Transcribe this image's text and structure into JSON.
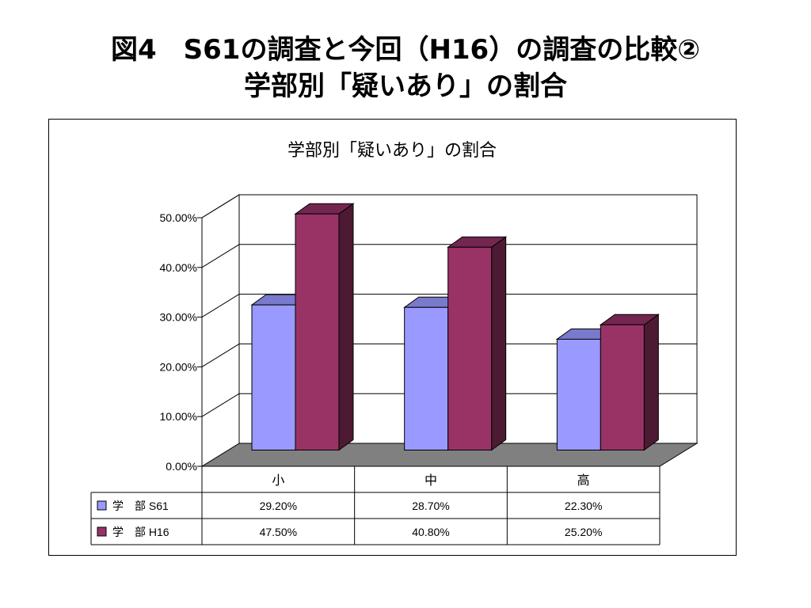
{
  "slide": {
    "title_line1": "図4　S61の調査と今回（H16）の調査の比較②",
    "title_line2": "学部別「疑いあり」の割合"
  },
  "chart_data": {
    "type": "bar",
    "title": "学部別「疑いあり」の割合",
    "categories": [
      "小",
      "中",
      "高"
    ],
    "series": [
      {
        "name": "学　部 S61",
        "values": [
          29.2,
          28.7,
          22.3
        ],
        "labels": [
          "29.20%",
          "28.70%",
          "22.30%"
        ],
        "color": "#9999ff",
        "side_color": "#5c5c99",
        "top_color": "#7a7acc"
      },
      {
        "name": "学　部 H16",
        "values": [
          47.5,
          40.8,
          25.2
        ],
        "labels": [
          "47.50%",
          "40.80%",
          "25.20%"
        ],
        "color": "#993366",
        "side_color": "#4d1a33",
        "top_color": "#732650"
      }
    ],
    "y_ticks": [
      "0.00%",
      "10.00%",
      "20.00%",
      "30.00%",
      "40.00%",
      "50.00%"
    ],
    "ylim": [
      0,
      50
    ],
    "grid": true,
    "legend": "data-table",
    "floor_color": "#808080"
  }
}
